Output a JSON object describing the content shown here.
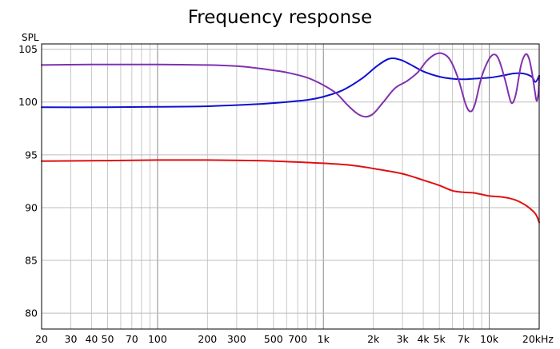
{
  "chart_data": {
    "type": "line",
    "title": "Frequency response",
    "ylabel": "SPL",
    "xlabel": "",
    "x_scale": "log",
    "xlim": [
      20,
      20000
    ],
    "ylim": [
      78.5,
      105.5
    ],
    "grid": true,
    "legend": "none",
    "x_tick_labels": [
      {
        "value": 20,
        "label": "20"
      },
      {
        "value": 30,
        "label": "30"
      },
      {
        "value": 40,
        "label": "40"
      },
      {
        "value": 50,
        "label": "50"
      },
      {
        "value": 70,
        "label": "70"
      },
      {
        "value": 100,
        "label": "100"
      },
      {
        "value": 200,
        "label": "200"
      },
      {
        "value": 300,
        "label": "300"
      },
      {
        "value": 500,
        "label": "500"
      },
      {
        "value": 700,
        "label": "700"
      },
      {
        "value": 1000,
        "label": "1k"
      },
      {
        "value": 2000,
        "label": "2k"
      },
      {
        "value": 3000,
        "label": "3k"
      },
      {
        "value": 4000,
        "label": "4k"
      },
      {
        "value": 5000,
        "label": "5k"
      },
      {
        "value": 7000,
        "label": "7k"
      },
      {
        "value": 10000,
        "label": "10k"
      },
      {
        "value": 20000,
        "label": "20kHz"
      }
    ],
    "y_ticks": [
      80,
      85,
      90,
      95,
      100,
      105
    ],
    "series": [
      {
        "color": "#1010d0",
        "points": [
          [
            20,
            99.5
          ],
          [
            50,
            99.5
          ],
          [
            100,
            99.55
          ],
          [
            200,
            99.6
          ],
          [
            400,
            99.8
          ],
          [
            600,
            100
          ],
          [
            800,
            100.2
          ],
          [
            1000,
            100.5
          ],
          [
            1300,
            101.1
          ],
          [
            1700,
            102.2
          ],
          [
            2100,
            103.4
          ],
          [
            2500,
            104.1
          ],
          [
            2900,
            104
          ],
          [
            3300,
            103.6
          ],
          [
            4000,
            102.9
          ],
          [
            5000,
            102.4
          ],
          [
            6000,
            102.2
          ],
          [
            7000,
            102.15
          ],
          [
            8000,
            102.2
          ],
          [
            10000,
            102.3
          ],
          [
            12000,
            102.5
          ],
          [
            14000,
            102.7
          ],
          [
            16000,
            102.7
          ],
          [
            18000,
            102.4
          ],
          [
            19000,
            101.9
          ],
          [
            20000,
            102.5
          ]
        ]
      },
      {
        "color": "#8030b0",
        "points": [
          [
            20,
            103.5
          ],
          [
            40,
            103.55
          ],
          [
            60,
            103.55
          ],
          [
            100,
            103.55
          ],
          [
            200,
            103.5
          ],
          [
            300,
            103.4
          ],
          [
            400,
            103.2
          ],
          [
            500,
            103
          ],
          [
            600,
            102.8
          ],
          [
            800,
            102.3
          ],
          [
            1000,
            101.6
          ],
          [
            1200,
            100.8
          ],
          [
            1400,
            99.7
          ],
          [
            1600,
            98.9
          ],
          [
            1800,
            98.6
          ],
          [
            2000,
            98.9
          ],
          [
            2300,
            100
          ],
          [
            2700,
            101.3
          ],
          [
            3200,
            102
          ],
          [
            3700,
            102.8
          ],
          [
            4200,
            103.9
          ],
          [
            4700,
            104.5
          ],
          [
            5200,
            104.6
          ],
          [
            5800,
            104
          ],
          [
            6500,
            102.2
          ],
          [
            7200,
            99.8
          ],
          [
            7700,
            99.1
          ],
          [
            8200,
            99.8
          ],
          [
            9000,
            102.4
          ],
          [
            10000,
            104.1
          ],
          [
            10800,
            104.5
          ],
          [
            11500,
            103.9
          ],
          [
            12500,
            102
          ],
          [
            13300,
            100.3
          ],
          [
            13800,
            99.9
          ],
          [
            14500,
            100.8
          ],
          [
            15500,
            103.4
          ],
          [
            16500,
            104.5
          ],
          [
            17300,
            104.2
          ],
          [
            18000,
            103
          ],
          [
            18800,
            101.1
          ],
          [
            19300,
            100.1
          ],
          [
            19800,
            100.9
          ],
          [
            20000,
            102.4
          ]
        ]
      },
      {
        "color": "#e01010",
        "points": [
          [
            20,
            94.4
          ],
          [
            50,
            94.45
          ],
          [
            100,
            94.5
          ],
          [
            200,
            94.5
          ],
          [
            400,
            94.45
          ],
          [
            600,
            94.35
          ],
          [
            1000,
            94.2
          ],
          [
            1500,
            94
          ],
          [
            2000,
            93.7
          ],
          [
            3000,
            93.2
          ],
          [
            4000,
            92.6
          ],
          [
            5000,
            92.1
          ],
          [
            6000,
            91.6
          ],
          [
            7000,
            91.45
          ],
          [
            8000,
            91.4
          ],
          [
            9000,
            91.25
          ],
          [
            10000,
            91.1
          ],
          [
            12000,
            91
          ],
          [
            13500,
            90.85
          ],
          [
            15000,
            90.6
          ],
          [
            17000,
            90.1
          ],
          [
            19000,
            89.4
          ],
          [
            20000,
            88.6
          ]
        ]
      }
    ]
  }
}
